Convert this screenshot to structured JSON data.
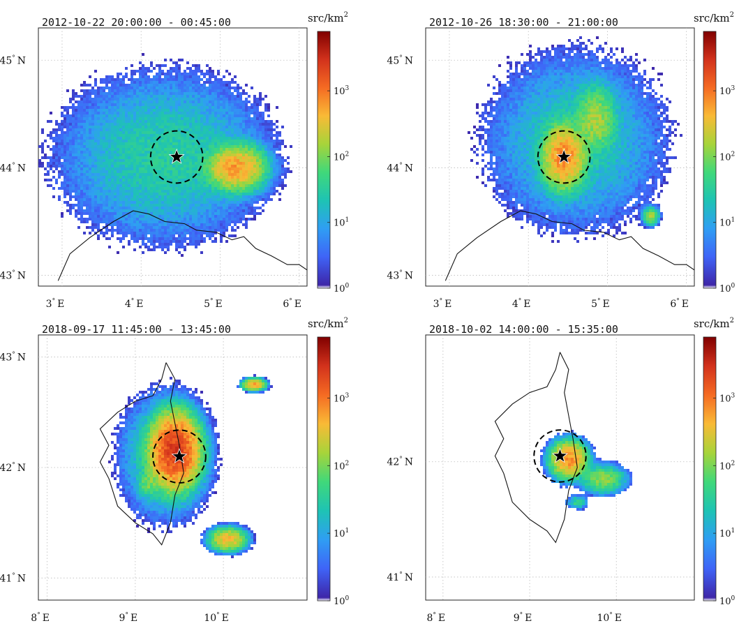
{
  "colorbar": {
    "label": "src/km",
    "label_sup": "2",
    "scale": "log",
    "range": [
      1,
      8000
    ],
    "tick_values": [
      1,
      10,
      100,
      1000
    ],
    "ticks": [
      {
        "base": "10",
        "exp": "0"
      },
      {
        "base": "10",
        "exp": "1"
      },
      {
        "base": "10",
        "exp": "2"
      },
      {
        "base": "10",
        "exp": "3"
      }
    ],
    "colormap": [
      "#ffffff",
      "#3e26a8",
      "#3f64f7",
      "#2f9ef3",
      "#1ec3b4",
      "#40d87a",
      "#a7d43a",
      "#f9ba36",
      "#f56b23",
      "#d2321c",
      "#800000"
    ]
  },
  "chart_data": [
    {
      "type": "heatmap",
      "title": "2012-10-22  20:00:00  -  00:45:00",
      "xlabel": "",
      "ylabel": "",
      "x_ticks": [
        {
          "value": 3,
          "label": "3",
          "hemi": "E"
        },
        {
          "value": 4,
          "label": "4",
          "hemi": "E"
        },
        {
          "value": 5,
          "label": "5",
          "hemi": "E"
        },
        {
          "value": 6,
          "label": "6",
          "hemi": "E"
        }
      ],
      "y_ticks": [
        {
          "value": 43,
          "label": "43",
          "hemi": "N"
        },
        {
          "value": 44,
          "label": "44",
          "hemi": "N"
        },
        {
          "value": 45,
          "label": "45",
          "hemi": "N"
        }
      ],
      "xlim": [
        2.7,
        6.1
      ],
      "ylim": [
        42.9,
        45.3
      ],
      "grid": true,
      "marker": {
        "lon": 4.45,
        "lat": 44.1,
        "symbol": "star",
        "circle_radius_deg": 0.33
      },
      "coastline": [
        [
          2.95,
          42.95
        ],
        [
          3.1,
          43.2
        ],
        [
          3.35,
          43.35
        ],
        [
          3.65,
          43.5
        ],
        [
          3.9,
          43.6
        ],
        [
          4.1,
          43.57
        ],
        [
          4.3,
          43.5
        ],
        [
          4.55,
          43.48
        ],
        [
          4.7,
          43.42
        ],
        [
          4.95,
          43.4
        ],
        [
          5.15,
          43.33
        ],
        [
          5.3,
          43.36
        ],
        [
          5.45,
          43.25
        ],
        [
          5.65,
          43.18
        ],
        [
          5.85,
          43.1
        ],
        [
          6.0,
          43.1
        ],
        [
          6.1,
          43.05
        ]
      ],
      "density_blobs": [
        {
          "lon": 4.3,
          "lat": 44.1,
          "rx": 1.3,
          "ry": 0.75,
          "peak": 30
        },
        {
          "lon": 5.2,
          "lat": 44.0,
          "rx": 0.35,
          "ry": 0.2,
          "peak": 600
        }
      ],
      "sparse_edge": true
    },
    {
      "type": "heatmap",
      "title": "2012-10-26  18:30:00  -  21:00:00",
      "xlabel": "",
      "ylabel": "",
      "x_ticks": [
        {
          "value": 3,
          "label": "3",
          "hemi": "E"
        },
        {
          "value": 4,
          "label": "4",
          "hemi": "E"
        },
        {
          "value": 5,
          "label": "5",
          "hemi": "E"
        },
        {
          "value": 6,
          "label": "6",
          "hemi": "E"
        }
      ],
      "y_ticks": [
        {
          "value": 43,
          "label": "43",
          "hemi": "N"
        },
        {
          "value": 44,
          "label": "44",
          "hemi": "N"
        },
        {
          "value": 45,
          "label": "45",
          "hemi": "N"
        }
      ],
      "xlim": [
        2.7,
        6.1
      ],
      "ylim": [
        42.9,
        45.3
      ],
      "grid": true,
      "marker": {
        "lon": 4.45,
        "lat": 44.1,
        "symbol": "star",
        "circle_radius_deg": 0.33
      },
      "coastline": [
        [
          2.95,
          42.95
        ],
        [
          3.1,
          43.2
        ],
        [
          3.35,
          43.35
        ],
        [
          3.65,
          43.5
        ],
        [
          3.9,
          43.6
        ],
        [
          4.1,
          43.57
        ],
        [
          4.3,
          43.5
        ],
        [
          4.55,
          43.48
        ],
        [
          4.7,
          43.42
        ],
        [
          4.95,
          43.4
        ],
        [
          5.15,
          43.33
        ],
        [
          5.3,
          43.36
        ],
        [
          5.45,
          43.25
        ],
        [
          5.65,
          43.18
        ],
        [
          5.85,
          43.1
        ],
        [
          6.0,
          43.1
        ],
        [
          6.1,
          43.05
        ]
      ],
      "density_blobs": [
        {
          "lon": 4.6,
          "lat": 44.25,
          "rx": 1.1,
          "ry": 0.8,
          "peak": 25
        },
        {
          "lon": 4.45,
          "lat": 44.1,
          "rx": 0.25,
          "ry": 0.28,
          "peak": 800
        },
        {
          "lon": 4.85,
          "lat": 44.45,
          "rx": 0.25,
          "ry": 0.3,
          "peak": 150
        },
        {
          "lon": 5.55,
          "lat": 43.55,
          "rx": 0.1,
          "ry": 0.08,
          "peak": 150
        }
      ],
      "sparse_edge": true
    },
    {
      "type": "heatmap",
      "title": "2018-09-17  11:45:00  -  13:45:00",
      "xlabel": "",
      "ylabel": "",
      "x_ticks": [
        {
          "value": 8,
          "label": "8",
          "hemi": "E"
        },
        {
          "value": 9,
          "label": "9",
          "hemi": "E"
        },
        {
          "value": 10,
          "label": "10",
          "hemi": "E"
        }
      ],
      "y_ticks": [
        {
          "value": 41,
          "label": "41",
          "hemi": "N"
        },
        {
          "value": 42,
          "label": "42",
          "hemi": "N"
        },
        {
          "value": 43,
          "label": "43",
          "hemi": "N"
        }
      ],
      "xlim": [
        7.9,
        10.95
      ],
      "ylim": [
        40.8,
        43.2
      ],
      "grid": true,
      "marker": {
        "lon": 9.5,
        "lat": 42.1,
        "symbol": "star",
        "circle_radius_deg": 0.3
      },
      "coastline": [
        [
          9.35,
          42.95
        ],
        [
          9.45,
          42.8
        ],
        [
          9.4,
          42.6
        ],
        [
          9.45,
          42.4
        ],
        [
          9.5,
          42.2
        ],
        [
          9.55,
          41.95
        ],
        [
          9.45,
          41.75
        ],
        [
          9.4,
          41.5
        ],
        [
          9.3,
          41.3
        ],
        [
          9.2,
          41.4
        ],
        [
          9.0,
          41.5
        ],
        [
          8.8,
          41.65
        ],
        [
          8.7,
          41.9
        ],
        [
          8.6,
          42.05
        ],
        [
          8.7,
          42.2
        ],
        [
          8.6,
          42.35
        ],
        [
          8.8,
          42.5
        ],
        [
          9.0,
          42.6
        ],
        [
          9.2,
          42.65
        ],
        [
          9.3,
          42.8
        ],
        [
          9.35,
          42.95
        ]
      ],
      "density_blobs": [
        {
          "lon": 9.35,
          "lat": 42.1,
          "rx": 0.5,
          "ry": 0.55,
          "peak": 40
        },
        {
          "lon": 9.45,
          "lat": 42.15,
          "rx": 0.25,
          "ry": 0.3,
          "peak": 2500
        },
        {
          "lon": 10.35,
          "lat": 42.75,
          "rx": 0.12,
          "ry": 0.05,
          "peak": 600
        },
        {
          "lon": 10.05,
          "lat": 41.35,
          "rx": 0.2,
          "ry": 0.1,
          "peak": 400
        },
        {
          "lon": 9.15,
          "lat": 41.85,
          "rx": 0.12,
          "ry": 0.12,
          "peak": 80
        }
      ],
      "sparse_edge": true
    },
    {
      "type": "heatmap",
      "title": "2018-10-02  14:00:00  -  15:35:00",
      "xlabel": "",
      "ylabel": "",
      "x_ticks": [
        {
          "value": 8,
          "label": "8",
          "hemi": "E"
        },
        {
          "value": 9,
          "label": "9",
          "hemi": "E"
        },
        {
          "value": 10,
          "label": "10",
          "hemi": "E"
        }
      ],
      "y_ticks": [
        {
          "value": 41,
          "label": "41",
          "hemi": "N"
        },
        {
          "value": 42,
          "label": "42",
          "hemi": "N"
        }
      ],
      "xlim": [
        7.8,
        10.9
      ],
      "ylim": [
        40.8,
        43.1
      ],
      "grid": true,
      "marker": {
        "lon": 9.35,
        "lat": 42.05,
        "symbol": "star",
        "circle_radius_deg": 0.3
      },
      "coastline": [
        [
          9.35,
          42.95
        ],
        [
          9.45,
          42.8
        ],
        [
          9.4,
          42.6
        ],
        [
          9.45,
          42.4
        ],
        [
          9.5,
          42.2
        ],
        [
          9.55,
          41.95
        ],
        [
          9.45,
          41.75
        ],
        [
          9.4,
          41.5
        ],
        [
          9.3,
          41.3
        ],
        [
          9.2,
          41.4
        ],
        [
          9.0,
          41.5
        ],
        [
          8.8,
          41.65
        ],
        [
          8.7,
          41.9
        ],
        [
          8.6,
          42.05
        ],
        [
          8.7,
          42.2
        ],
        [
          8.6,
          42.35
        ],
        [
          8.8,
          42.5
        ],
        [
          9.0,
          42.6
        ],
        [
          9.2,
          42.65
        ],
        [
          9.3,
          42.8
        ],
        [
          9.35,
          42.95
        ]
      ],
      "density_blobs": [
        {
          "lon": 9.45,
          "lat": 42.02,
          "rx": 0.2,
          "ry": 0.15,
          "peak": 700
        },
        {
          "lon": 9.85,
          "lat": 41.85,
          "rx": 0.25,
          "ry": 0.12,
          "peak": 120
        },
        {
          "lon": 9.55,
          "lat": 41.65,
          "rx": 0.12,
          "ry": 0.06,
          "peak": 40
        }
      ],
      "sparse_edge": false
    }
  ]
}
